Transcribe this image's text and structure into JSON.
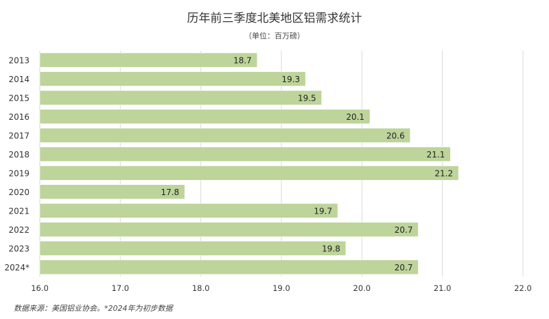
{
  "chart_data": {
    "type": "bar",
    "orientation": "horizontal",
    "title": "历年前三季度北美地区铝需求统计",
    "subtitle": "（单位：百万磅）",
    "categories": [
      "2013",
      "2014",
      "2015",
      "2016",
      "2017",
      "2018",
      "2019",
      "2020",
      "2021",
      "2022",
      "2023",
      "2024*"
    ],
    "values": [
      18.7,
      19.3,
      19.5,
      20.1,
      20.6,
      21.1,
      21.2,
      17.8,
      19.7,
      20.7,
      19.8,
      20.7
    ],
    "xlim": [
      16.0,
      22.0
    ],
    "xticks": [
      "16.0",
      "17.0",
      "18.0",
      "19.0",
      "20.0",
      "21.0",
      "22.0"
    ],
    "grid": true,
    "footnote": "数据来源：美国铝业协会。*2024年为初步数据",
    "colors": {
      "bar": "#bdd49a",
      "grid": "#d9d9d9",
      "frame": "#cfcfcf"
    }
  }
}
